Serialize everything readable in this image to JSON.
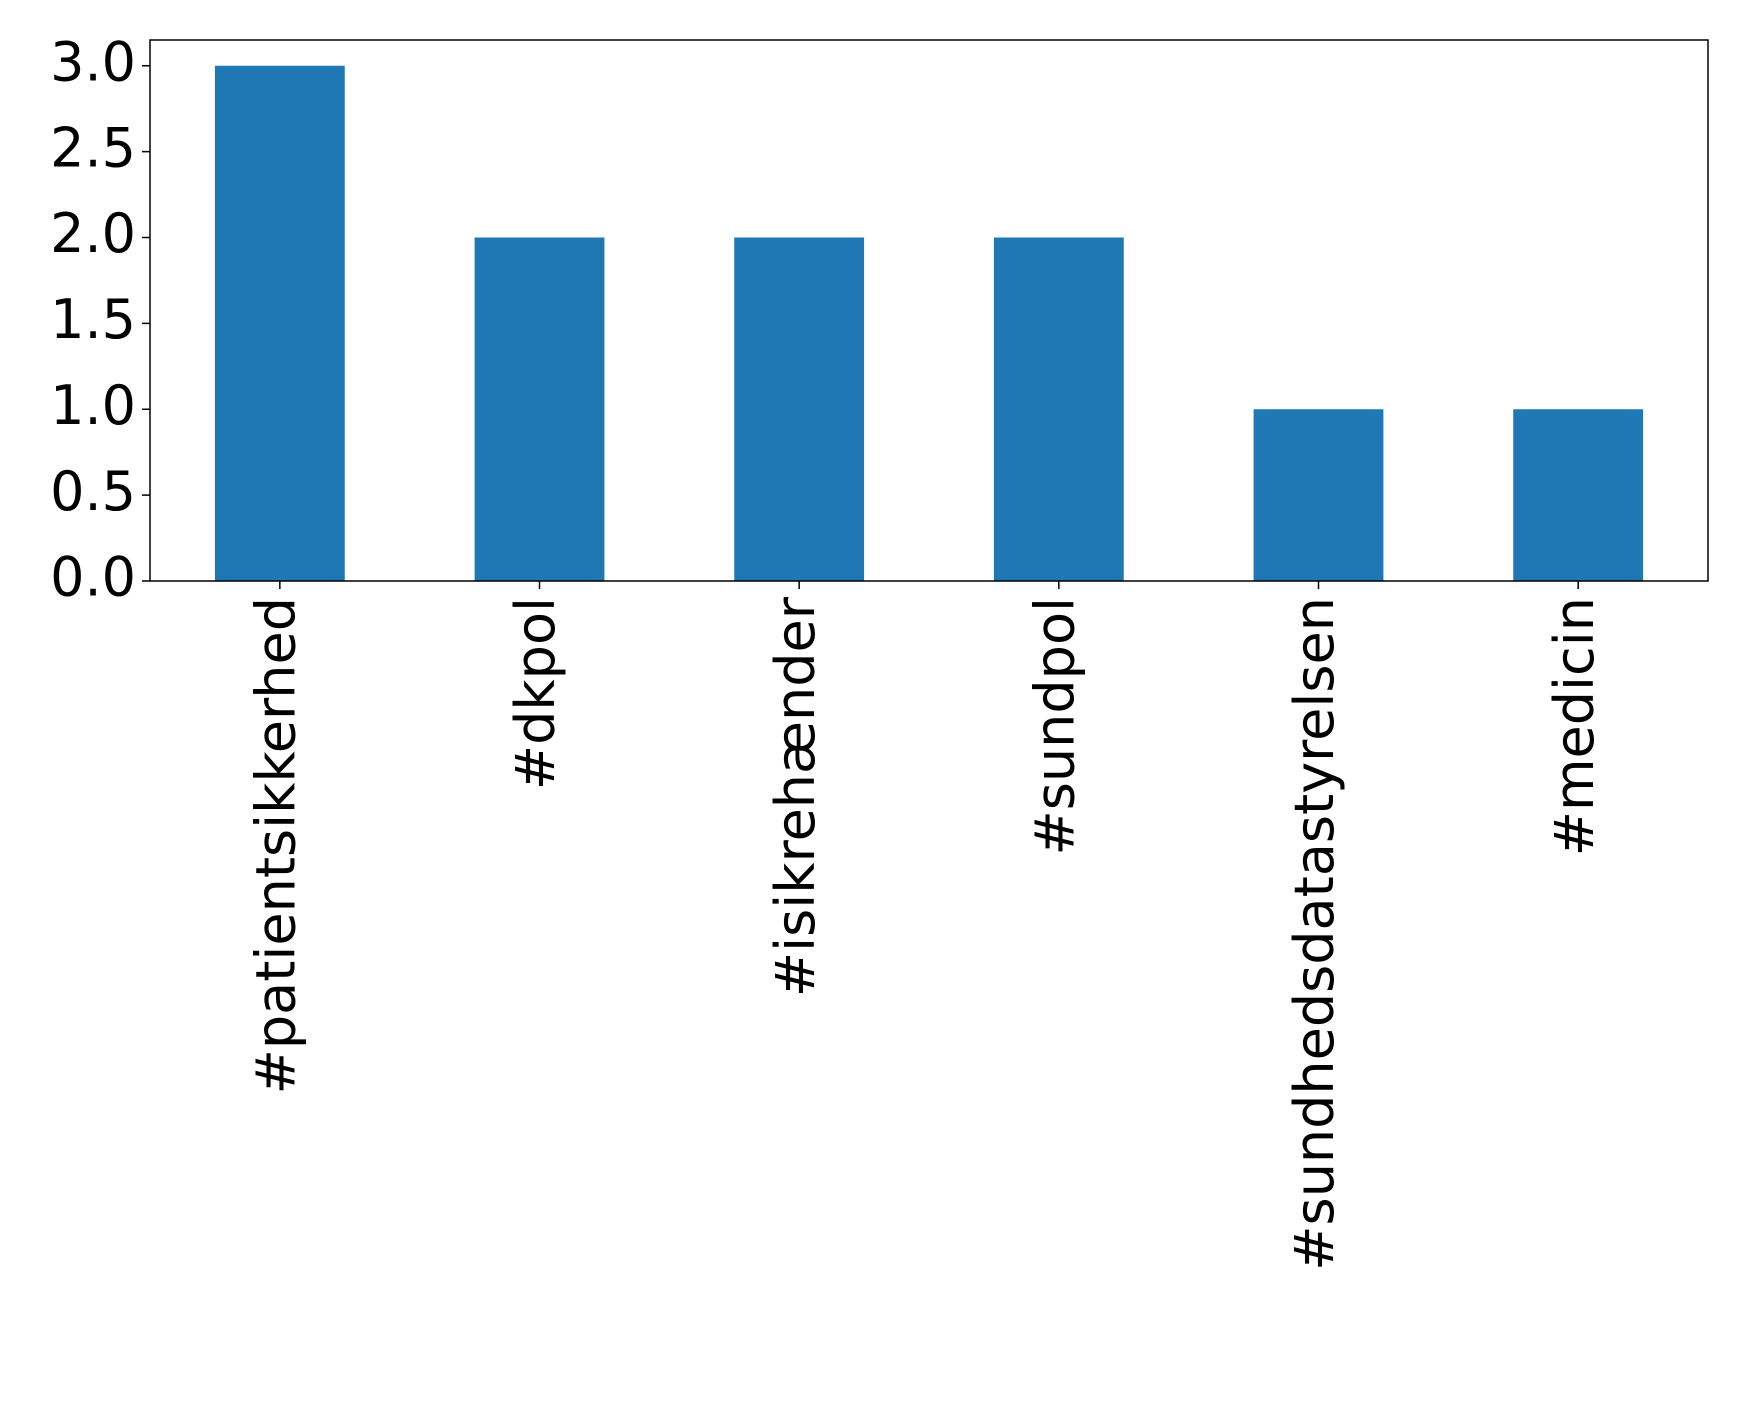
{
  "chart_data": {
    "type": "bar",
    "categories": [
      "#patientsikkerhed",
      "#dkpol",
      "#isikrehænder",
      "#sundpol",
      "#sundhedsdatastyrelsen",
      "#medicin"
    ],
    "values": [
      3,
      2,
      2,
      2,
      1,
      1
    ],
    "color": "#1f77b4",
    "ylim": [
      0,
      3.15
    ],
    "yticks": [
      {
        "value": 0,
        "label": "0.0"
      },
      0.5,
      {
        "value": 1,
        "label": "1.0"
      },
      1.5,
      {
        "value": 2,
        "label": "2.0"
      },
      2.5,
      {
        "value": 3,
        "label": "3.0"
      }
    ],
    "grid": false
  }
}
